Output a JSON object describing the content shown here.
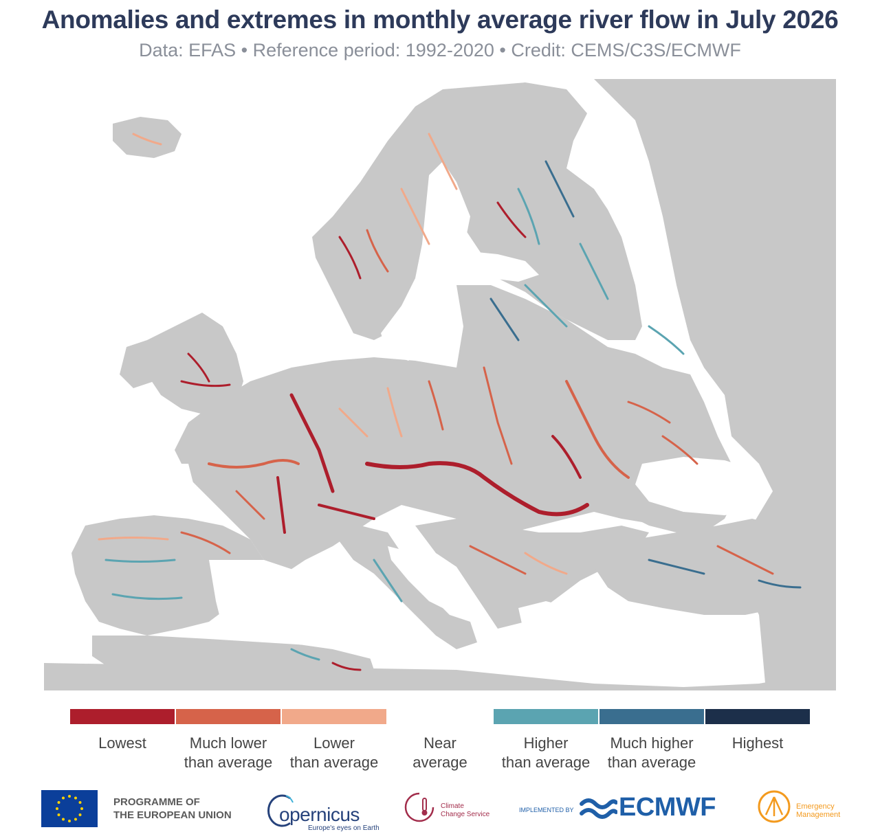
{
  "header": {
    "title": "Anomalies and extremes in monthly average river flow in July 2026",
    "subtitle": "Data: EFAS • Reference period: 1992-2020 • Credit: CEMS/C3S/ECMWF"
  },
  "colors": {
    "lowest": "#ad1e2c",
    "much_lower": "#d6634a",
    "lower": "#f1a98a",
    "near": "#ffffff",
    "higher": "#5ba4b1",
    "much_higher": "#3a6e8f",
    "highest": "#1c2f4a",
    "land": "#c8c8c8",
    "sea": "#ffffff",
    "outside": "#c8c8c8"
  },
  "legend": {
    "items": [
      {
        "label": "Lowest",
        "color": "#ad1e2c"
      },
      {
        "label": "Much lower\nthan average",
        "color": "#d6634a"
      },
      {
        "label": "Lower\nthan average",
        "color": "#f1a98a"
      },
      {
        "label": "Near\naverage",
        "color": "#ffffff"
      },
      {
        "label": "Higher\nthan average",
        "color": "#5ba4b1"
      },
      {
        "label": "Much higher\nthan average",
        "color": "#3a6e8f"
      },
      {
        "label": "Highest",
        "color": "#1c2f4a"
      }
    ]
  },
  "footer": {
    "eu": "PROGRAMME OF\nTHE EUROPEAN UNION",
    "copernicus": "opernicus",
    "copernicus_tag": "Europe's eyes on Earth",
    "c3s": "Climate\nChange Service",
    "ecmwf_impl": "IMPLEMENTED BY",
    "ecmwf": "ECMWF",
    "em": "Emergency\nManagement"
  }
}
